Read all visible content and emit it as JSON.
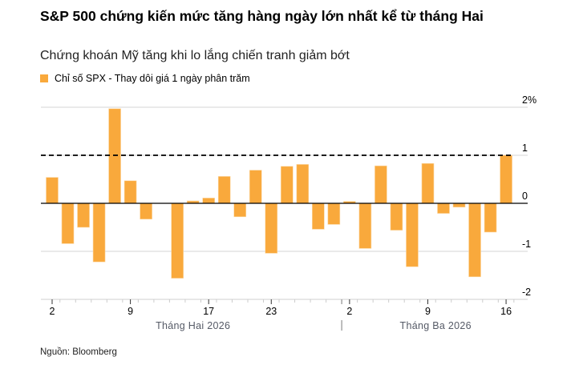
{
  "title": "S&P 500 chứng kiến mức tăng hàng ngày lớn nhất kể từ tháng Hai",
  "subtitle": "Chứng khoán Mỹ tăng khi lo lắng chiến tranh giảm bớt",
  "source": "Nguồn: Bloomberg",
  "colors": {
    "bar": "#f9a93c",
    "grid": "#dddddd",
    "axis": "#000000",
    "month_label": "#555a66"
  },
  "chart_data": {
    "type": "bar",
    "title": "S&P 500 chứng kiến mức tăng hàng ngày lớn nhất kể từ tháng Hai",
    "legend": "Chỉ số SPX - Thay dôi giá 1 ngày phân trăm",
    "ylabel": "",
    "ylim": [
      -2,
      2
    ],
    "yticks": [
      {
        "v": 2,
        "label": "2%"
      },
      {
        "v": 1,
        "label": "1"
      },
      {
        "v": 0,
        "label": "0"
      },
      {
        "v": -1,
        "label": "-1"
      },
      {
        "v": -2,
        "label": "-2"
      }
    ],
    "reference_line": 1,
    "categories": [
      "2026-02-02",
      "2026-02-03",
      "2026-02-04",
      "2026-02-05",
      "2026-02-06",
      "2026-02-09",
      "2026-02-10",
      "2026-02-11",
      "2026-02-12",
      "2026-02-13",
      "2026-02-17",
      "2026-02-18",
      "2026-02-19",
      "2026-02-20",
      "2026-02-23",
      "2026-02-24",
      "2026-02-25",
      "2026-02-26",
      "2026-02-27",
      "2026-03-02",
      "2026-03-03",
      "2026-03-04",
      "2026-03-05",
      "2026-03-06",
      "2026-03-09",
      "2026-03-10",
      "2026-03-11",
      "2026-03-12",
      "2026-03-13",
      "2026-03-16"
    ],
    "values": [
      0.54,
      -0.84,
      -0.5,
      -1.22,
      1.97,
      0.47,
      -0.33,
      0.0,
      -1.56,
      0.05,
      0.11,
      0.56,
      -0.28,
      0.69,
      -1.04,
      0.77,
      0.81,
      -0.54,
      -0.44,
      0.04,
      -0.94,
      0.78,
      -0.56,
      -1.32,
      0.83,
      -0.21,
      -0.08,
      -1.53,
      -0.6,
      1.0
    ],
    "xticks": [
      {
        "index": 0,
        "label": "2"
      },
      {
        "index": 5,
        "label": "9"
      },
      {
        "index": 10,
        "label": "17"
      },
      {
        "index": 14,
        "label": "23"
      },
      {
        "index": 19,
        "label": "2"
      },
      {
        "index": 24,
        "label": "9"
      },
      {
        "index": 29,
        "label": "16"
      }
    ],
    "months": [
      {
        "label": "Tháng Hai 2026",
        "center_index": 9
      },
      {
        "label": "Tháng Ba 2026",
        "center_index": 24.5
      }
    ],
    "month_divider_after_index": 18
  }
}
